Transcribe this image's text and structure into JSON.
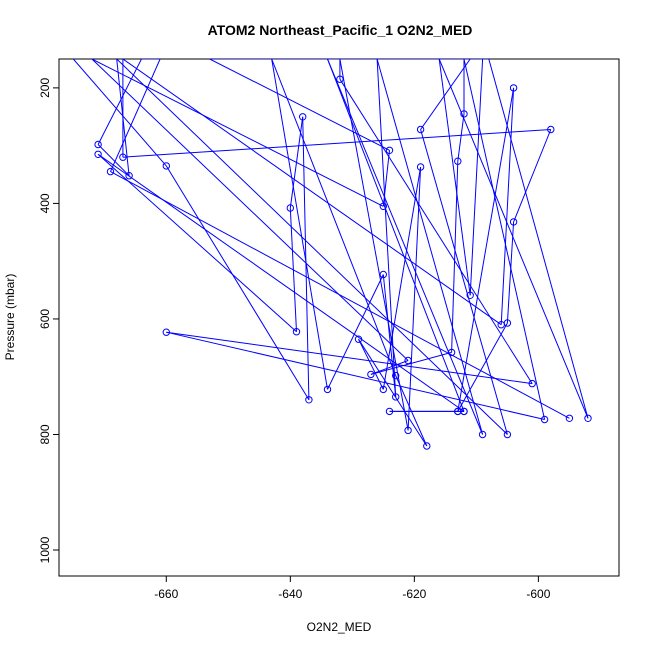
{
  "chart_data": {
    "type": "line",
    "title": "ATOM2 Northeast_Pacific_1 O2N2_MED",
    "xlabel": "O2N2_MED",
    "ylabel": "Pressure (mbar)",
    "xlim": [
      -677.3,
      -587.0
    ],
    "ylim": [
      1045,
      150
    ],
    "y_inverted": true,
    "grid": false,
    "x_ticks": [
      -660,
      -640,
      -620,
      -600
    ],
    "y_ticks": [
      200,
      400,
      600,
      800,
      1000
    ],
    "series": [
      {
        "color": "#0000ff",
        "points": [
          [
            -675,
            150
          ],
          [
            -660,
            335
          ],
          [
            -637,
            740
          ],
          [
            -638,
            250
          ],
          [
            -640,
            408
          ],
          [
            -639,
            622
          ],
          [
            -671,
            315
          ],
          [
            -612,
            760
          ],
          [
            -613,
            760
          ],
          [
            -604,
            200
          ],
          [
            -606,
            610
          ],
          [
            -667,
            150
          ],
          [
            -667,
            320
          ],
          [
            -598,
            272
          ],
          [
            -604,
            432
          ],
          [
            -605,
            607
          ],
          [
            -613,
            760
          ],
          [
            -624,
            760
          ],
          [
            -612,
            760
          ],
          [
            -634,
            150
          ],
          [
            -609,
            800
          ],
          [
            -626,
            150
          ],
          [
            -623,
            735
          ],
          [
            -625,
            523
          ],
          [
            -634,
            722
          ],
          [
            -643,
            150
          ],
          [
            -623,
            698
          ],
          [
            -618,
            820
          ],
          [
            -629,
            635
          ],
          [
            -625,
            722
          ],
          [
            -619,
            337
          ],
          [
            -621,
            793
          ],
          [
            -632,
            150
          ],
          [
            -632,
            185
          ],
          [
            -601,
            712
          ],
          [
            -660,
            623
          ],
          [
            -599,
            774
          ],
          [
            -612,
            150
          ],
          [
            -612,
            245
          ],
          [
            -613,
            327
          ],
          [
            -614,
            658
          ],
          [
            -627,
            696
          ],
          [
            -621,
            672
          ],
          [
            -672,
            150
          ],
          [
            -625,
            405
          ],
          [
            -624,
            308
          ],
          [
            -653,
            150
          ],
          [
            -608,
            150
          ],
          [
            -592,
            772
          ],
          [
            -616,
            150
          ],
          [
            -611,
            559
          ],
          [
            -609,
            150
          ],
          [
            -611,
            150
          ],
          [
            -619,
            272
          ],
          [
            -605,
            800
          ],
          [
            -668,
            150
          ],
          [
            -666,
            352
          ],
          [
            -671,
            298
          ],
          [
            -664,
            150
          ],
          [
            -661,
            150
          ],
          [
            -669,
            345
          ],
          [
            -595,
            772
          ]
        ]
      }
    ]
  }
}
